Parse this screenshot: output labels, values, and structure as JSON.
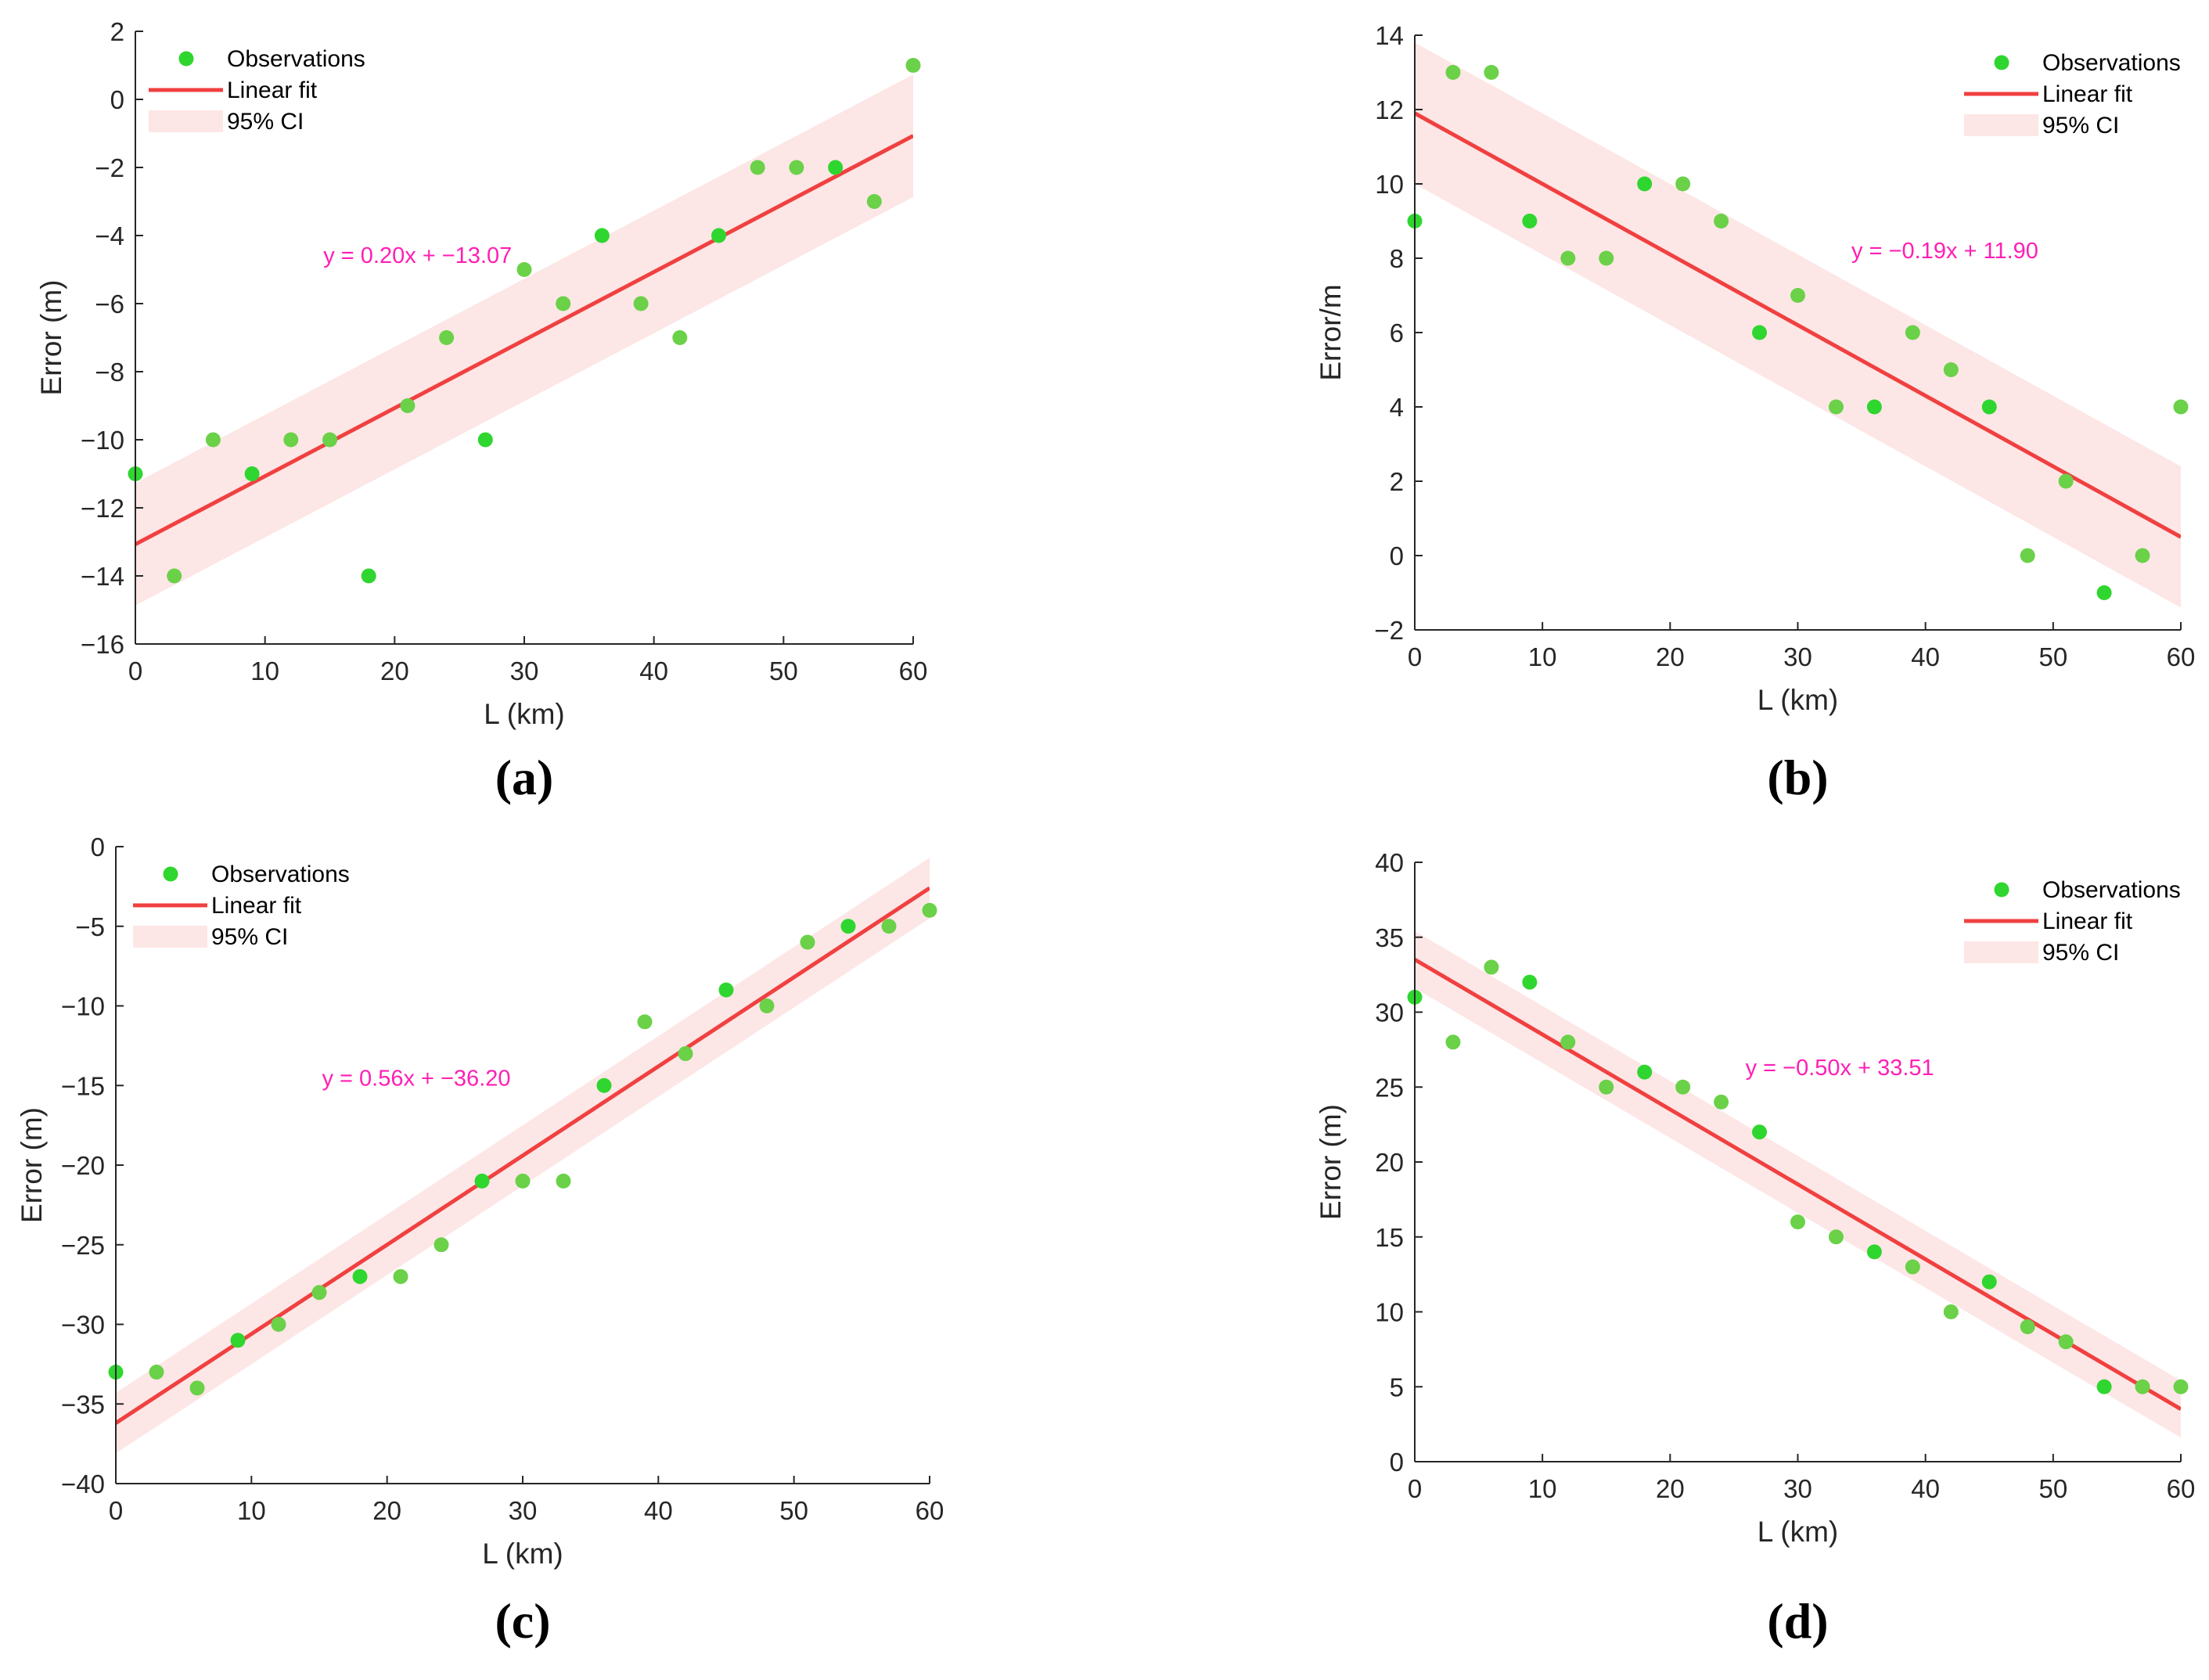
{
  "colors": {
    "observation": "#2fd62f",
    "observation_light": "#6ad148",
    "fit_line": "#f04040",
    "ci_band": "#fde6e6",
    "equation": "#ff1fb4",
    "axis": "#262626"
  },
  "chart_data": [
    {
      "type": "scatter",
      "panel_label": "(a)",
      "xlabel": "L (km)",
      "ylabel": "Error (m)",
      "xlim": [
        0,
        60
      ],
      "ylim": [
        -16,
        2
      ],
      "xticks": [
        0,
        10,
        20,
        30,
        40,
        50,
        60
      ],
      "yticks": [
        -16,
        -14,
        -12,
        -10,
        -8,
        -6,
        -4,
        -2,
        0,
        2
      ],
      "ytick_labels": [
        "−16",
        "−14",
        "−12",
        "−10",
        "−8",
        "−6",
        "−4",
        "−2",
        "0",
        "2"
      ],
      "legend": {
        "position": "top-left",
        "entries": [
          "Observations",
          "Linear fit",
          "95% CI"
        ]
      },
      "equation": "y = 0.20x + −13.07",
      "equation_at": [
        14.5,
        -4.8
      ],
      "fit": {
        "slope": 0.2,
        "intercept": -13.07,
        "ci_half_width": 1.8
      },
      "series": [
        {
          "name": "Observations",
          "x": [
            0,
            3,
            6,
            9,
            12,
            15,
            18,
            21,
            24,
            27,
            30,
            33,
            36,
            39,
            42,
            45,
            48,
            51,
            54,
            57,
            60
          ],
          "y": [
            -11,
            -14,
            -10,
            -11,
            -10,
            -10,
            -14,
            -9,
            -7,
            -10,
            -5,
            -6,
            -4,
            -6,
            -7,
            -4,
            -2,
            -2,
            -2,
            -3,
            1
          ]
        }
      ]
    },
    {
      "type": "scatter",
      "panel_label": "(b)",
      "xlabel": "L (km)",
      "ylabel": "Error/m",
      "xlim": [
        0,
        60
      ],
      "ylim": [
        -2,
        14
      ],
      "xticks": [
        0,
        10,
        20,
        30,
        40,
        50,
        60
      ],
      "yticks": [
        -2,
        0,
        2,
        4,
        6,
        8,
        10,
        12,
        14
      ],
      "ytick_labels": [
        "−2",
        "0",
        "2",
        "4",
        "6",
        "8",
        "10",
        "12",
        "14"
      ],
      "legend": {
        "position": "top-right",
        "entries": [
          "Observations",
          "Linear fit",
          "95% CI"
        ]
      },
      "equation": "y = −0.19x + 11.90",
      "equation_at": [
        34.2,
        8.0
      ],
      "fit": {
        "slope": -0.19,
        "intercept": 11.9,
        "ci_half_width": 1.9
      },
      "series": [
        {
          "name": "Observations",
          "x": [
            0,
            3,
            6,
            9,
            12,
            15,
            18,
            21,
            24,
            27,
            30,
            33,
            36,
            39,
            42,
            45,
            48,
            51,
            54,
            57,
            60
          ],
          "y": [
            9,
            13,
            13,
            9,
            8,
            8,
            10,
            10,
            9,
            6,
            7,
            4,
            4,
            6,
            5,
            4,
            0,
            2,
            -1,
            0,
            4
          ]
        }
      ]
    },
    {
      "type": "scatter",
      "panel_label": "(c)",
      "xlabel": "L (km)",
      "ylabel": "Error (m)",
      "xlim": [
        0,
        60
      ],
      "ylim": [
        -40,
        0
      ],
      "xticks": [
        0,
        10,
        20,
        30,
        40,
        50,
        60
      ],
      "yticks": [
        -40,
        -35,
        -30,
        -25,
        -20,
        -15,
        -10,
        -5,
        0
      ],
      "ytick_labels": [
        "−40",
        "−35",
        "−30",
        "−25",
        "−20",
        "−15",
        "−10",
        "−5",
        "0"
      ],
      "legend": {
        "position": "top-left",
        "entries": [
          "Observations",
          "Linear fit",
          "95% CI"
        ]
      },
      "equation": "y = 0.56x + −36.20",
      "equation_at": [
        15.2,
        -15.0
      ],
      "fit": {
        "slope": 0.56,
        "intercept": -36.2,
        "ci_half_width": 1.9
      },
      "series": [
        {
          "name": "Observations",
          "x": [
            0,
            3,
            6,
            9,
            12,
            15,
            18,
            21,
            24,
            27,
            30,
            33,
            36,
            39,
            42,
            45,
            48,
            51,
            54,
            57,
            60
          ],
          "y": [
            -33,
            -33,
            -34,
            -31,
            -30,
            -28,
            -27,
            -27,
            -25,
            -21,
            -21,
            -21,
            -15,
            -11,
            -13,
            -9,
            -10,
            -6,
            -5,
            -5,
            -4
          ]
        }
      ]
    },
    {
      "type": "scatter",
      "panel_label": "(d)",
      "xlabel": "L (km)",
      "ylabel": "Error (m)",
      "xlim": [
        0,
        60
      ],
      "ylim": [
        0,
        40
      ],
      "xticks": [
        0,
        10,
        20,
        30,
        40,
        50,
        60
      ],
      "yticks": [
        0,
        5,
        10,
        15,
        20,
        25,
        30,
        35,
        40
      ],
      "ytick_labels": [
        "0",
        "5",
        "10",
        "15",
        "20",
        "25",
        "30",
        "35",
        "40"
      ],
      "legend": {
        "position": "top-right",
        "entries": [
          "Observations",
          "Linear fit",
          "95% CI"
        ]
      },
      "equation": "y = −0.50x + 33.51",
      "equation_at": [
        25.9,
        25.8
      ],
      "fit": {
        "slope": -0.5,
        "intercept": 33.51,
        "ci_half_width": 1.9
      },
      "series": [
        {
          "name": "Observations",
          "x": [
            0,
            3,
            6,
            9,
            12,
            15,
            18,
            21,
            24,
            27,
            30,
            33,
            36,
            39,
            42,
            45,
            48,
            51,
            54,
            57,
            60
          ],
          "y": [
            31,
            28,
            33,
            32,
            28,
            25,
            26,
            25,
            24,
            22,
            16,
            15,
            14,
            13,
            10,
            12,
            9,
            8,
            5,
            5,
            5
          ]
        }
      ]
    }
  ]
}
